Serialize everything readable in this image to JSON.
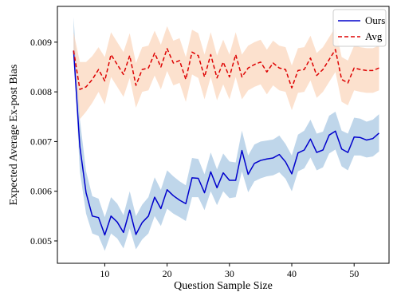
{
  "chart_data": {
    "type": "line",
    "xlabel": "Question Sample Size",
    "ylabel": "Expected Average Ex-post Bias",
    "xlim": [
      2.4,
      55.6
    ],
    "ylim": [
      0.00455,
      0.00972
    ],
    "xticks": [
      10,
      20,
      30,
      40,
      50
    ],
    "yticks": [
      0.005,
      0.006,
      0.007,
      0.008,
      0.009
    ],
    "grid": false,
    "legend_position": "top-right",
    "x": [
      5,
      6,
      7,
      8,
      9,
      10,
      11,
      12,
      13,
      14,
      15,
      16,
      17,
      18,
      19,
      20,
      21,
      22,
      23,
      24,
      25,
      26,
      27,
      28,
      29,
      30,
      31,
      32,
      33,
      34,
      35,
      36,
      37,
      38,
      39,
      40,
      41,
      42,
      43,
      44,
      45,
      46,
      47,
      48,
      49,
      50,
      51,
      52,
      53,
      54
    ],
    "series": [
      {
        "name": "Ours",
        "color": "#0000cc",
        "fill": "#a9c8e3",
        "style": "solid",
        "values": [
          0.00883,
          0.0069,
          0.00597,
          0.0055,
          0.00547,
          0.00512,
          0.0055,
          0.00538,
          0.00517,
          0.00562,
          0.00513,
          0.00537,
          0.0055,
          0.00588,
          0.00565,
          0.00603,
          0.00591,
          0.00582,
          0.00575,
          0.00627,
          0.00626,
          0.00597,
          0.00639,
          0.00607,
          0.00637,
          0.00622,
          0.00622,
          0.00682,
          0.00634,
          0.00656,
          0.00662,
          0.00665,
          0.00667,
          0.00674,
          0.00659,
          0.00635,
          0.00677,
          0.00683,
          0.00705,
          0.00678,
          0.00683,
          0.00713,
          0.00721,
          0.00685,
          0.00678,
          0.00709,
          0.00708,
          0.00703,
          0.00706,
          0.00717
        ],
        "lower": [
          0.00883,
          0.0064,
          0.00555,
          0.00515,
          0.0051,
          0.0048,
          0.00515,
          0.00505,
          0.00485,
          0.00525,
          0.00483,
          0.00503,
          0.00515,
          0.0055,
          0.0053,
          0.00565,
          0.00555,
          0.00548,
          0.0054,
          0.00588,
          0.00588,
          0.00562,
          0.006,
          0.00572,
          0.006,
          0.00586,
          0.00588,
          0.0064,
          0.00598,
          0.0062,
          0.00626,
          0.0063,
          0.00632,
          0.00638,
          0.00625,
          0.006,
          0.0064,
          0.00646,
          0.00668,
          0.00642,
          0.00648,
          0.00676,
          0.00684,
          0.0065,
          0.00642,
          0.00672,
          0.00672,
          0.00668,
          0.0067,
          0.0068
        ],
        "upper": [
          0.0095,
          0.00745,
          0.0064,
          0.0059,
          0.00585,
          0.00548,
          0.00588,
          0.00575,
          0.00552,
          0.006,
          0.0055,
          0.00573,
          0.00588,
          0.00628,
          0.00603,
          0.00642,
          0.0063,
          0.0062,
          0.00612,
          0.00667,
          0.00665,
          0.00634,
          0.00678,
          0.00644,
          0.00676,
          0.0066,
          0.00658,
          0.00722,
          0.00672,
          0.00694,
          0.007,
          0.00702,
          0.00704,
          0.00712,
          0.00695,
          0.00672,
          0.00714,
          0.00722,
          0.00744,
          0.00716,
          0.0072,
          0.00752,
          0.0076,
          0.00722,
          0.00716,
          0.00748,
          0.00746,
          0.0074,
          0.00744,
          0.00755
        ]
      },
      {
        "name": "Avg",
        "color": "#dd0000",
        "fill": "#fbd7bd",
        "style": "dashed",
        "values": [
          0.00883,
          0.00805,
          0.0081,
          0.00825,
          0.00845,
          0.00822,
          0.00875,
          0.00855,
          0.00835,
          0.00873,
          0.00813,
          0.00845,
          0.00848,
          0.00878,
          0.0085,
          0.00887,
          0.00858,
          0.00863,
          0.00825,
          0.0088,
          0.00873,
          0.0083,
          0.00875,
          0.00828,
          0.0086,
          0.0083,
          0.00875,
          0.0083,
          0.00848,
          0.00855,
          0.0086,
          0.0084,
          0.00858,
          0.00848,
          0.00845,
          0.00808,
          0.00843,
          0.00845,
          0.00868,
          0.00833,
          0.00845,
          0.00865,
          0.00885,
          0.00825,
          0.00818,
          0.00848,
          0.00845,
          0.00843,
          0.00843,
          0.00848
        ],
        "lower": [
          0.00883,
          0.00745,
          0.0076,
          0.00778,
          0.008,
          0.00775,
          0.0083,
          0.0081,
          0.0079,
          0.00828,
          0.00768,
          0.008,
          0.00803,
          0.00833,
          0.00805,
          0.00842,
          0.00813,
          0.00818,
          0.0078,
          0.00835,
          0.00828,
          0.00785,
          0.0083,
          0.00783,
          0.00815,
          0.00785,
          0.0083,
          0.00785,
          0.00803,
          0.0081,
          0.00815,
          0.00795,
          0.00813,
          0.00803,
          0.008,
          0.00763,
          0.00798,
          0.008,
          0.00823,
          0.00788,
          0.008,
          0.0082,
          0.0084,
          0.0078,
          0.00773,
          0.00803,
          0.008,
          0.00798,
          0.00798,
          0.00803
        ],
        "upper": [
          0.0092,
          0.0086,
          0.0086,
          0.00872,
          0.0089,
          0.0087,
          0.0092,
          0.009,
          0.0088,
          0.00918,
          0.00858,
          0.0089,
          0.00893,
          0.00923,
          0.00895,
          0.00932,
          0.00903,
          0.00908,
          0.0087,
          0.00925,
          0.00918,
          0.00875,
          0.0092,
          0.00873,
          0.00905,
          0.00875,
          0.0092,
          0.00875,
          0.00893,
          0.009,
          0.00905,
          0.00885,
          0.00903,
          0.00893,
          0.0089,
          0.00853,
          0.00888,
          0.0089,
          0.00913,
          0.00878,
          0.0089,
          0.0091,
          0.0093,
          0.0087,
          0.00863,
          0.00893,
          0.0089,
          0.00888,
          0.00888,
          0.00893
        ]
      }
    ]
  }
}
